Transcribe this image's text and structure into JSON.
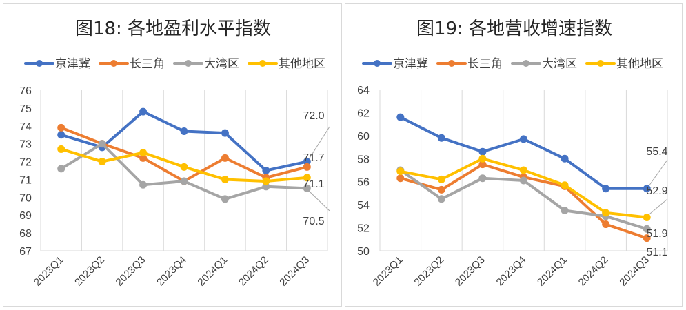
{
  "chart_data": [
    {
      "type": "line",
      "title": "图18: 各地盈利水平指数",
      "xlabel": "",
      "ylabel": "",
      "categories": [
        "2023Q1",
        "2023Q2",
        "2023Q3",
        "2023Q4",
        "2024Q1",
        "2024Q2",
        "2024Q3"
      ],
      "ylim": [
        67,
        76
      ],
      "yticks": [
        76,
        75,
        74,
        73,
        72,
        71,
        70,
        69,
        68,
        67
      ],
      "grid": "vertical",
      "legend": "top",
      "series": [
        {
          "name": "京津冀",
          "color": "#4472C4",
          "values": [
            73.5,
            72.8,
            74.8,
            73.7,
            73.6,
            71.5,
            72.0
          ]
        },
        {
          "name": "长三角",
          "color": "#ED7D31",
          "values": [
            73.9,
            73.0,
            72.2,
            70.9,
            72.2,
            71.1,
            71.7
          ]
        },
        {
          "name": "大湾区",
          "color": "#A5A5A5",
          "values": [
            71.6,
            73.0,
            70.7,
            70.9,
            69.9,
            70.6,
            70.5
          ]
        },
        {
          "name": "其他地区",
          "color": "#FFC000",
          "values": [
            72.7,
            72.0,
            72.5,
            71.7,
            71.0,
            70.9,
            71.1
          ]
        }
      ],
      "end_labels": [
        "72.0",
        "71.7",
        "71.1",
        "70.5"
      ]
    },
    {
      "type": "line",
      "title": "图19: 各地营收增速指数",
      "xlabel": "",
      "ylabel": "",
      "categories": [
        "2023Q1",
        "2023Q2",
        "2023Q3",
        "2023Q4",
        "2024Q1",
        "2024Q2",
        "2024Q3"
      ],
      "ylim": [
        50,
        64
      ],
      "yticks": [
        64,
        62,
        60,
        58,
        56,
        54,
        52,
        50
      ],
      "grid": "vertical",
      "legend": "top",
      "series": [
        {
          "name": "京津冀",
          "color": "#4472C4",
          "values": [
            61.6,
            59.8,
            58.6,
            59.7,
            58.0,
            55.4,
            55.4
          ]
        },
        {
          "name": "长三角",
          "color": "#ED7D31",
          "values": [
            56.3,
            55.3,
            57.5,
            56.4,
            55.6,
            52.3,
            51.1
          ]
        },
        {
          "name": "大湾区",
          "color": "#A5A5A5",
          "values": [
            57.0,
            54.5,
            56.3,
            56.1,
            53.5,
            53.0,
            51.9
          ]
        },
        {
          "name": "其他地区",
          "color": "#FFC000",
          "values": [
            56.9,
            56.2,
            58.0,
            57.0,
            55.7,
            53.3,
            52.9
          ]
        }
      ],
      "end_labels": [
        "55.4",
        "52.9",
        "51.9",
        "51.1"
      ]
    }
  ]
}
